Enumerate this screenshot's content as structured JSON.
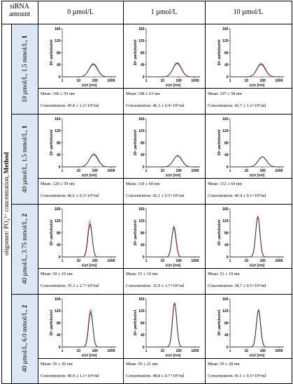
{
  "table": {
    "corner_label": "siRNA amount",
    "columns": [
      "0 µmol/L",
      "1 µmol/L",
      "10 µmol/L"
    ],
    "side_label_plain": "oligomer/ PO₄³⁻ concentration, ",
    "side_label_bold": "Method",
    "rows": [
      {
        "label_plain": "10 µmol/L, 1.5 mmol/L, ",
        "label_bold": "1"
      },
      {
        "label_plain": "40 µmol/L, 1.5 mmol/L, ",
        "label_bold": "1"
      },
      {
        "label_plain": "40 µmol/L, 3.75 mmol/L, ",
        "label_bold": "2"
      },
      {
        "label_plain": "40 µmol/L, 6.0 mmol/L, ",
        "label_bold": "2"
      }
    ]
  },
  "cells": [
    [
      {
        "mean": "Mean: 106 ± 59 nm",
        "conc": "Concentration: 45.8 ± 1.2×10⁹/ml"
      },
      {
        "mean": "Mean: 108 ± 63 nm",
        "conc": "Concentration: 46.3 ± 0.4×10⁹/ml"
      },
      {
        "mean": "Mean: 107 ± 58 nm",
        "conc": "Concentration: 42.7 ± 1.2×10⁹/ml"
      }
    ],
    [
      {
        "mean": "Mean: 120 ± 59 nm",
        "conc": "Concentration: 46.6 ± 0.3×10⁹/ml"
      },
      {
        "mean": "Mean: 118 ± 60 nm",
        "conc": "Concentration: 42.1 ± 0.5×10⁹/ml"
      },
      {
        "mean": "Mean: 132 ± 64 nm",
        "conc": "Concentration: 40.4 ± 0.1×10⁹/ml"
      }
    ],
    [
      {
        "mean": "Mean: 50 ± 19 nm",
        "conc": "Concentration: 35.3 ± 2.7×10⁹/ml"
      },
      {
        "mean": "Mean: 51 ± 19 nm",
        "conc": "Concentration: 32.9 ± 1.7×10⁹/ml"
      },
      {
        "mean": "Mean: 51 ± 19 nm",
        "conc": "Concentration: 38.7 ± 0.5×10⁹/ml"
      }
    ],
    [
      {
        "mean": "Mean: 56 ± 20 nm",
        "conc": "Concentration: 40.9 ± 1.1×10⁹/ml"
      },
      {
        "mean": "Mean: 56 ± 21 nm",
        "conc": "Concentration: 48.8 ± 0.7×10⁹/ml"
      },
      {
        "mean": "Mean: 59 ± 28 nm",
        "conc": "Concentration: 41.1 ± 0.5×10⁹/ml"
      }
    ]
  ],
  "colors": {
    "series_red": "#e8343a",
    "series_blue": "#3a6fd8",
    "series_black": "#222222",
    "label_bg": "#dbe7f4"
  },
  "chart_data": {
    "type": "line",
    "xlabel": "size [nm]",
    "ylabel": "10⁶ particles/ml",
    "xscale": "log",
    "xlim": [
      1,
      2000
    ],
    "ylim": [
      0,
      160
    ],
    "xticks": [
      "1",
      "10",
      "100",
      "1000"
    ],
    "yticks": [
      "0",
      "40",
      "80",
      "120",
      "160"
    ],
    "panels": [
      [
        {
          "peak_nm": 80,
          "series_peaks": [
            40,
            44,
            42
          ]
        },
        {
          "peak_nm": 80,
          "series_peaks": [
            43,
            47,
            45
          ]
        },
        {
          "peak_nm": 80,
          "series_peaks": [
            40,
            45,
            42
          ]
        }
      ],
      [
        {
          "peak_nm": 85,
          "series_peaks": [
            39,
            42,
            43
          ]
        },
        {
          "peak_nm": 85,
          "series_peaks": [
            36,
            38,
            37
          ]
        },
        {
          "peak_nm": 95,
          "series_peaks": [
            33,
            34,
            33
          ]
        }
      ],
      [
        {
          "peak_nm": 50,
          "series_peaks": [
            120,
            105,
            110
          ]
        },
        {
          "peak_nm": 50,
          "series_peaks": [
            95,
            103,
            99
          ]
        },
        {
          "peak_nm": 50,
          "series_peaks": [
            133,
            136,
            134
          ]
        }
      ],
      [
        {
          "peak_nm": 55,
          "series_peaks": [
            125,
            112,
            118
          ]
        },
        {
          "peak_nm": 55,
          "series_peaks": [
            148,
            144,
            146
          ]
        },
        {
          "peak_nm": 55,
          "series_peaks": [
            122,
            125,
            123
          ]
        }
      ]
    ]
  }
}
